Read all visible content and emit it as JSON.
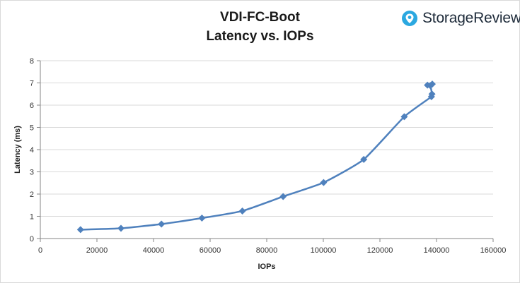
{
  "chart_data": {
    "type": "scatter",
    "title": "VDI-FC-Boot",
    "subtitle": "Latency vs. IOPs",
    "xlabel": "IOPs",
    "ylabel": "Latency (ms)",
    "xlim": [
      0,
      160000
    ],
    "ylim": [
      0,
      8
    ],
    "xticks": [
      0,
      20000,
      40000,
      60000,
      80000,
      100000,
      120000,
      140000,
      160000
    ],
    "yticks": [
      0,
      1,
      2,
      3,
      4,
      5,
      6,
      7,
      8
    ],
    "grid": "horizontal",
    "legend": "none",
    "series_color": "#4f81bd",
    "series": [
      {
        "x": [
          14200,
          28500,
          42800,
          57100,
          71400,
          85800,
          100100,
          114300,
          128600,
          138200,
          138400,
          137800,
          136800,
          138500
        ],
        "y": [
          0.4,
          0.46,
          0.65,
          0.92,
          1.24,
          1.89,
          2.52,
          3.56,
          5.48,
          6.38,
          6.5,
          6.88,
          6.9,
          6.95
        ]
      }
    ]
  },
  "branding": {
    "logo_text": "StorageReview",
    "logo_icon": "storagereview-logo-icon",
    "logo_color": "#2ba8e0"
  }
}
